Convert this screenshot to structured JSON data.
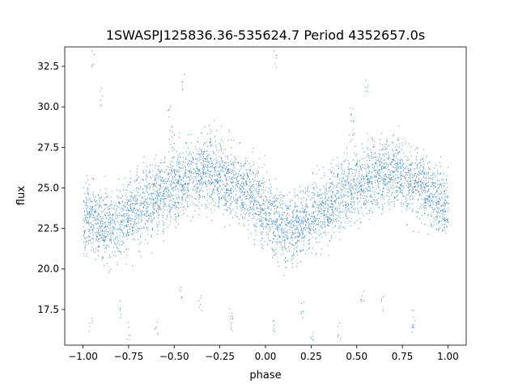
{
  "chart_data": {
    "type": "scatter",
    "title": "1SWASPJ125836.36-535624.7 Period 4352657.0s",
    "xlabel": "phase",
    "ylabel": "flux",
    "xlim": [
      -1.1,
      1.1
    ],
    "ylim": [
      15.3,
      33.7
    ],
    "xticks": [
      -1.0,
      -0.75,
      -0.5,
      -0.25,
      0.0,
      0.25,
      0.5,
      0.75,
      1.0
    ],
    "xtick_labels": [
      "−1.00",
      "−0.75",
      "−0.50",
      "−0.25",
      "0.00",
      "0.25",
      "0.50",
      "0.75",
      "1.00"
    ],
    "yticks": [
      17.5,
      20.0,
      22.5,
      25.0,
      27.5,
      30.0,
      32.5
    ],
    "ytick_labels": [
      "17.5",
      "20.0",
      "22.5",
      "25.0",
      "27.5",
      "30.0",
      "32.5"
    ],
    "grid": false,
    "marker_color": "#1f77b4",
    "curve_points": [
      {
        "phase": 0.0,
        "flux": 23.6
      },
      {
        "phase": 0.05,
        "flux": 23.0
      },
      {
        "phase": 0.1,
        "flux": 22.7
      },
      {
        "phase": 0.15,
        "flux": 22.5
      },
      {
        "phase": 0.2,
        "flux": 23.0
      },
      {
        "phase": 0.25,
        "flux": 23.3
      },
      {
        "phase": 0.3,
        "flux": 23.6
      },
      {
        "phase": 0.35,
        "flux": 24.0
      },
      {
        "phase": 0.4,
        "flux": 24.4
      },
      {
        "phase": 0.45,
        "flux": 24.9
      },
      {
        "phase": 0.5,
        "flux": 25.3
      },
      {
        "phase": 0.55,
        "flux": 25.5
      },
      {
        "phase": 0.6,
        "flux": 25.7
      },
      {
        "phase": 0.65,
        "flux": 26.0
      },
      {
        "phase": 0.7,
        "flux": 26.1
      },
      {
        "phase": 0.75,
        "flux": 25.9
      },
      {
        "phase": 0.8,
        "flux": 25.4
      },
      {
        "phase": 0.85,
        "flux": 25.2
      },
      {
        "phase": 0.9,
        "flux": 24.8
      },
      {
        "phase": 0.95,
        "flux": 24.2
      },
      {
        "phase": 1.0,
        "flux": 23.6
      }
    ],
    "scatter_half_width": 2.0,
    "outliers": [
      {
        "phase": -0.53,
        "flux": 29.6
      },
      {
        "phase": -0.52,
        "flux": 28.6
      },
      {
        "phase": -0.45,
        "flux": 31.5
      },
      {
        "phase": -0.47,
        "flux": 18.5
      },
      {
        "phase": -0.19,
        "flux": 17.0
      },
      {
        "phase": -0.19,
        "flux": 16.6
      },
      {
        "phase": 0.05,
        "flux": 32.9
      },
      {
        "phase": 0.47,
        "flux": 29.6
      },
      {
        "phase": 0.48,
        "flux": 28.6
      },
      {
        "phase": 0.55,
        "flux": 31.5
      },
      {
        "phase": 0.53,
        "flux": 18.5
      },
      {
        "phase": 0.81,
        "flux": 17.0
      },
      {
        "phase": 0.81,
        "flux": 16.6
      },
      {
        "phase": -0.95,
        "flux": 32.9
      },
      {
        "phase": -0.9,
        "flux": 30.6
      },
      {
        "phase": -0.96,
        "flux": 16.6
      },
      {
        "phase": 0.04,
        "flux": 16.6
      },
      {
        "phase": -0.36,
        "flux": 18.0
      },
      {
        "phase": 0.64,
        "flux": 18.0
      },
      {
        "phase": 0.25,
        "flux": 16.2
      },
      {
        "phase": -0.75,
        "flux": 16.2
      },
      {
        "phase": -0.6,
        "flux": 16.3
      },
      {
        "phase": 0.4,
        "flux": 16.3
      },
      {
        "phase": -0.8,
        "flux": 17.5
      },
      {
        "phase": 0.2,
        "flux": 17.5
      }
    ]
  }
}
